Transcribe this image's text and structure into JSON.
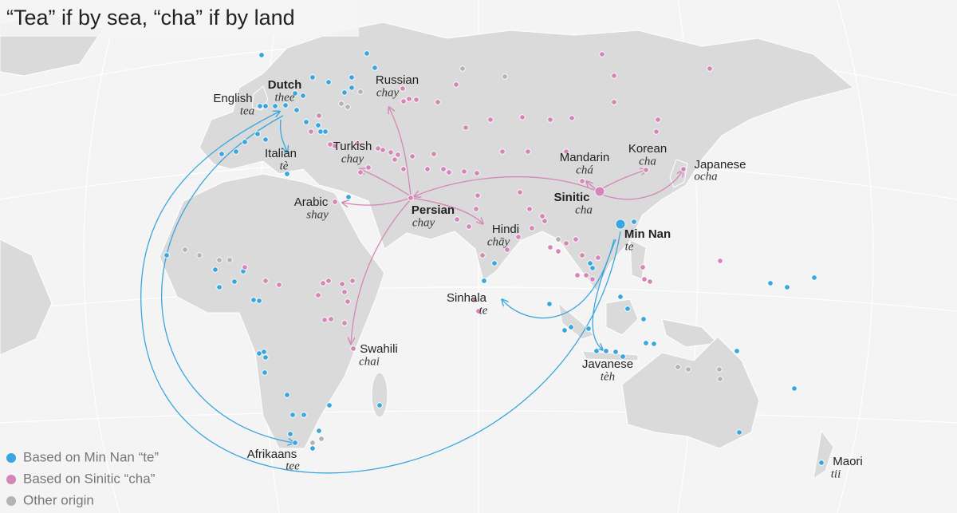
{
  "title": "“Tea” if by sea, “cha” if by land",
  "legend": [
    {
      "label": "Based on Min Nan “te”",
      "color": "#3aa6dd"
    },
    {
      "label": "Based on Sinitic “cha”",
      "color": "#d487b7"
    },
    {
      "label": "Other origin",
      "color": "#b3b3b3"
    }
  ],
  "labels": [
    {
      "name": "English",
      "word": "tea"
    },
    {
      "name": "Dutch",
      "word": "thee"
    },
    {
      "name": "Italian",
      "word": "tè"
    },
    {
      "name": "Russian",
      "word": "chay"
    },
    {
      "name": "Turkish",
      "word": "chay"
    },
    {
      "name": "Arabic",
      "word": "shay"
    },
    {
      "name": "Persian",
      "word": "chay"
    },
    {
      "name": "Hindi",
      "word": "chāy"
    },
    {
      "name": "Mandarin",
      "word": "chá"
    },
    {
      "name": "Korean",
      "word": "cha"
    },
    {
      "name": "Japanese",
      "word": "ocha"
    },
    {
      "name": "Sinitic",
      "word": "cha"
    },
    {
      "name": "Min Nan",
      "word": "te"
    },
    {
      "name": "Sinhala",
      "word": "te"
    },
    {
      "name": "Swahili",
      "word": "chai"
    },
    {
      "name": "Javanese",
      "word": "tèh"
    },
    {
      "name": "Afrikaans",
      "word": "tee"
    },
    {
      "name": "Maori",
      "word": "tii"
    }
  ]
}
